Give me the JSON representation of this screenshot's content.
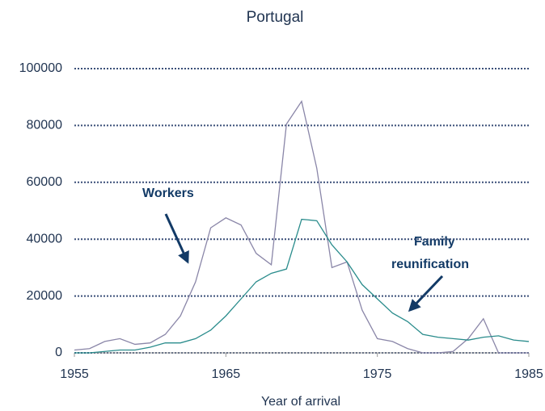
{
  "chart_data": {
    "type": "line",
    "title": "Portugal",
    "xlabel": "Year of arrival",
    "x": [
      1955,
      1956,
      1957,
      1958,
      1959,
      1960,
      1961,
      1962,
      1963,
      1964,
      1965,
      1966,
      1967,
      1968,
      1969,
      1970,
      1971,
      1972,
      1973,
      1974,
      1975,
      1976,
      1977,
      1978,
      1979,
      1980,
      1981,
      1982,
      1983,
      1984,
      1985
    ],
    "series": [
      {
        "name": "Workers",
        "color": "#8a86a8",
        "values": [
          1000,
          1500,
          4000,
          5000,
          3000,
          3500,
          6500,
          13000,
          25000,
          44000,
          47500,
          45000,
          35000,
          31000,
          80500,
          88500,
          65000,
          30000,
          32000,
          15000,
          5000,
          4000,
          1500,
          0,
          0,
          500,
          5000,
          12000,
          0,
          0,
          0
        ]
      },
      {
        "name": "Family reunification",
        "color": "#2a8c8c",
        "values": [
          0,
          0,
          500,
          1000,
          1000,
          2000,
          3500,
          3500,
          5000,
          8000,
          13000,
          19000,
          25000,
          28000,
          29500,
          47000,
          46500,
          38000,
          32000,
          24000,
          19000,
          14000,
          11000,
          6500,
          5500,
          5000,
          4500,
          5500,
          6000,
          4500,
          4000
        ]
      }
    ],
    "annotations": [
      "Workers",
      "Family",
      "reunification"
    ],
    "xlim": [
      1955,
      1985
    ],
    "xticks": [
      1955,
      1965,
      1975,
      1985
    ],
    "ylim": [
      0,
      100000
    ],
    "yticks": [
      0,
      20000,
      40000,
      60000,
      80000,
      100000
    ],
    "grid": true
  }
}
